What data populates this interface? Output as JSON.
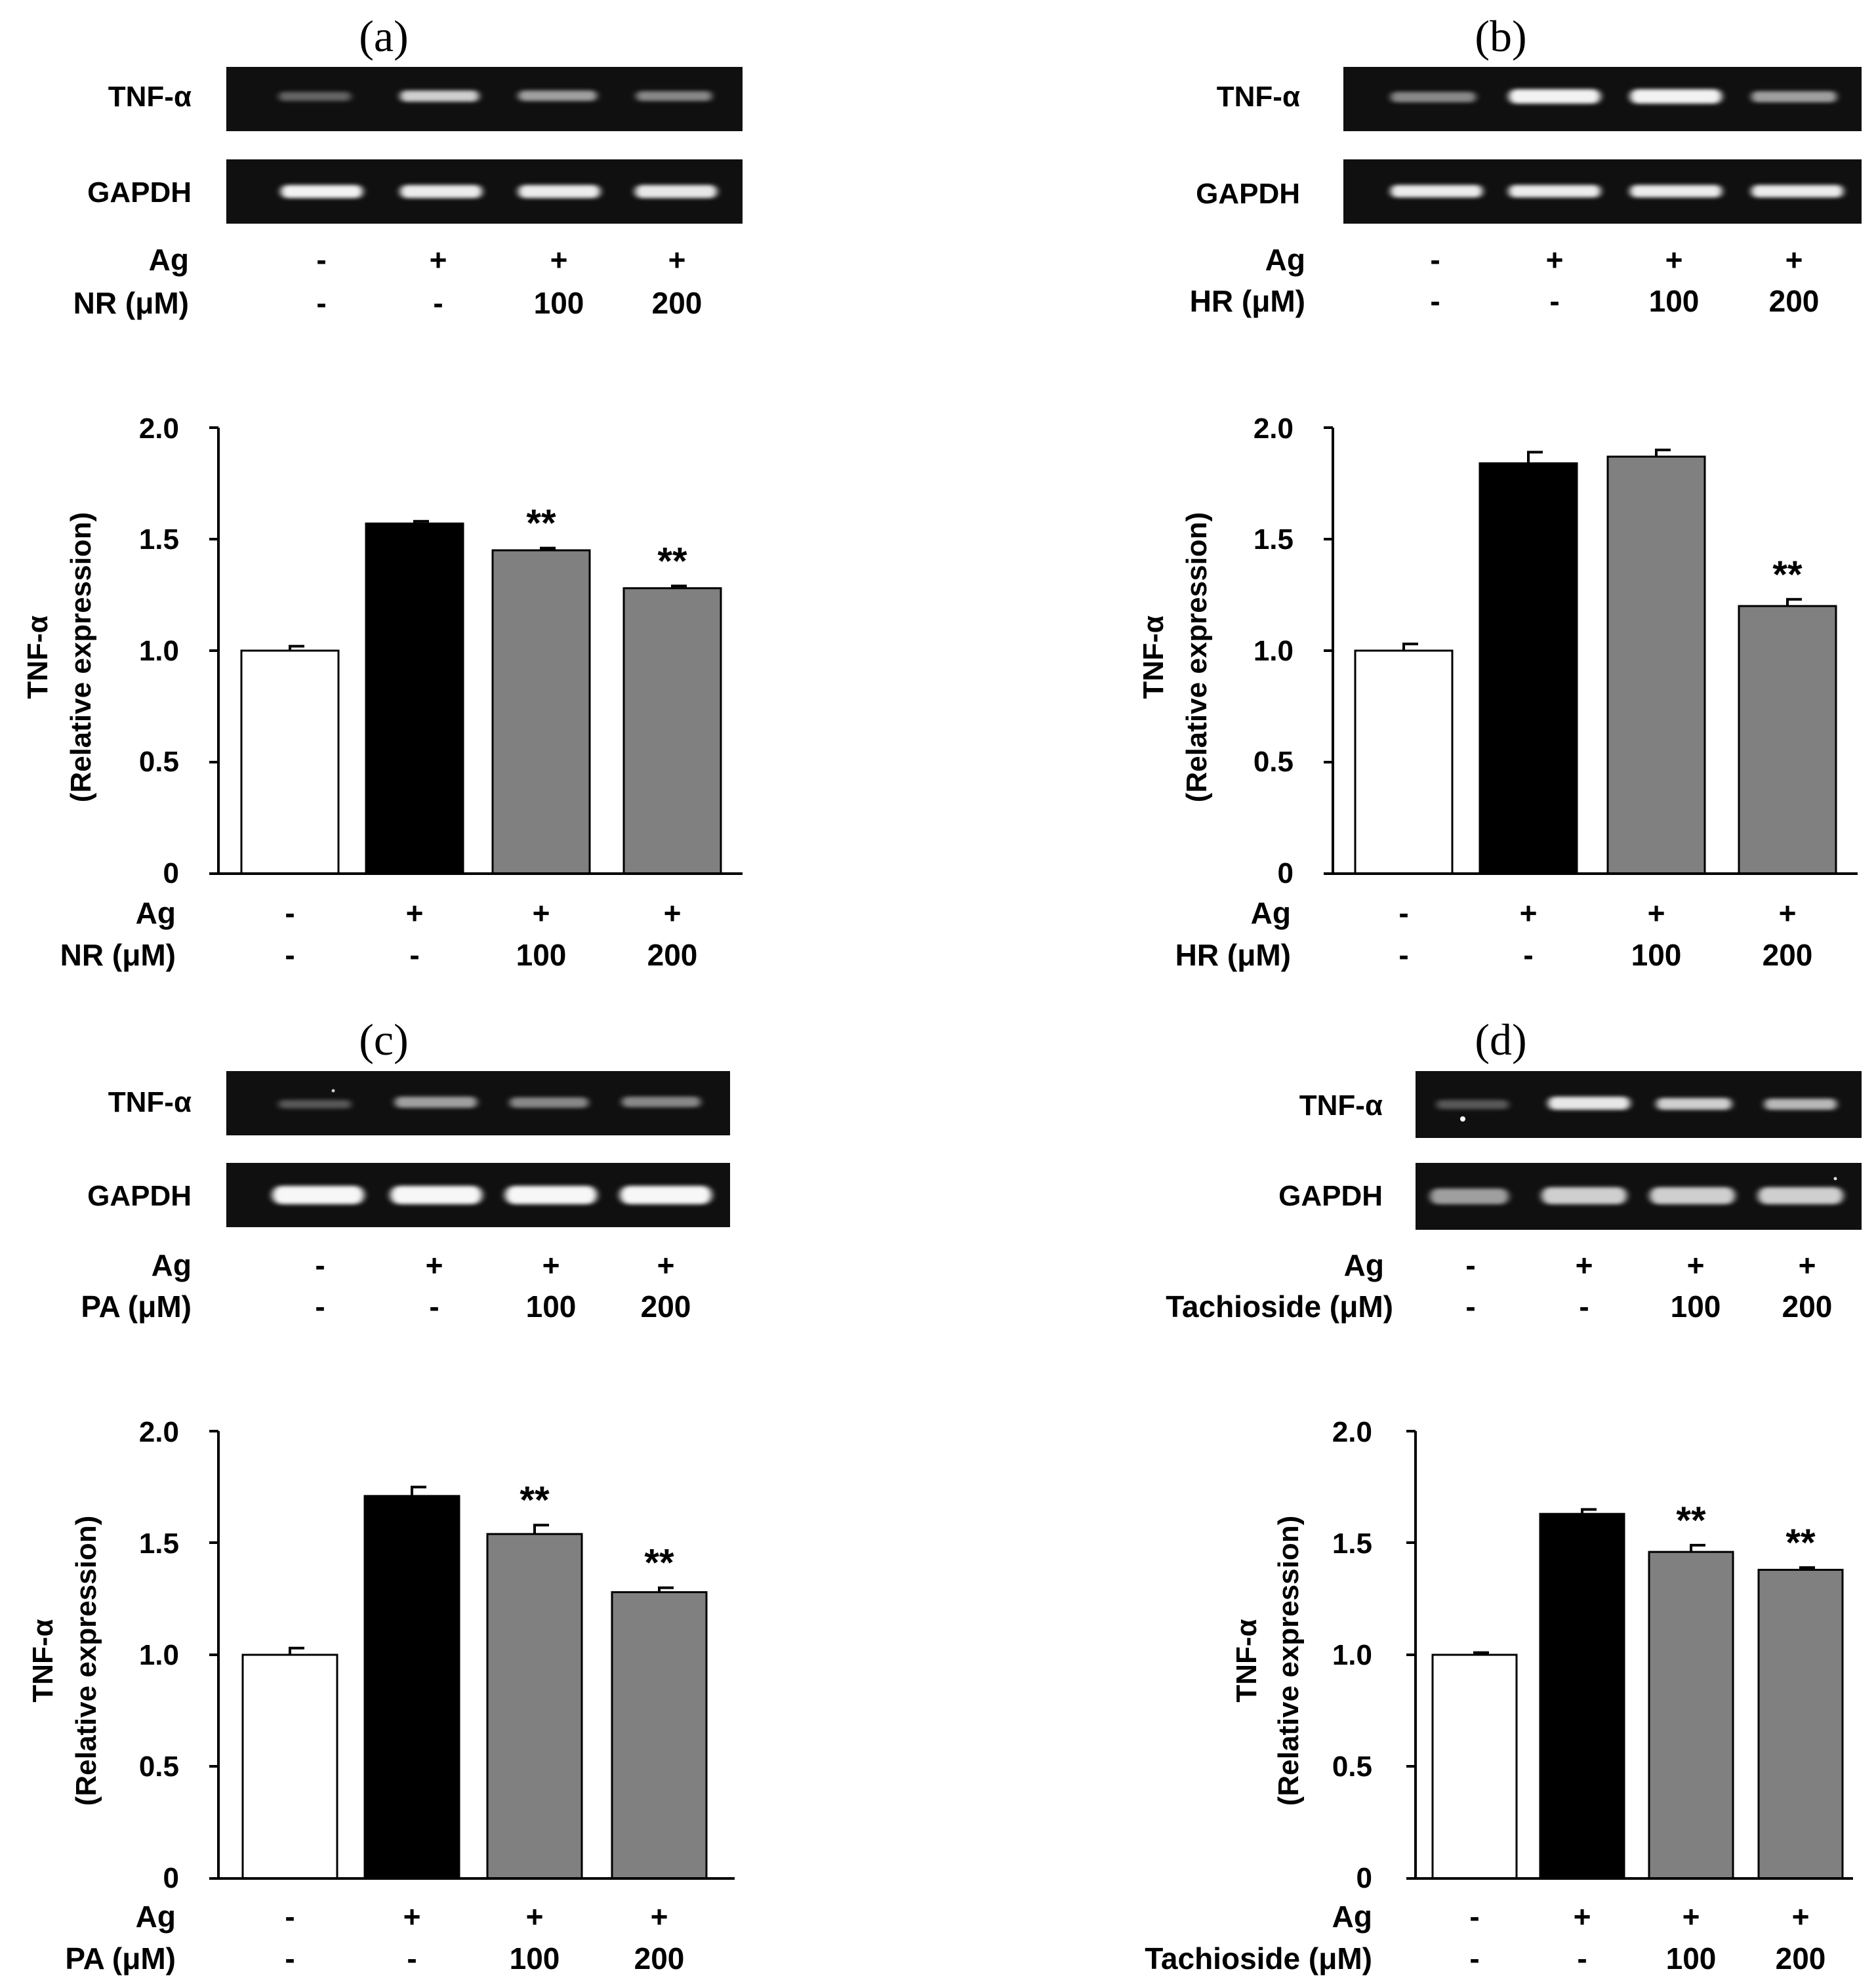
{
  "chart_data": [
    {
      "type": "bar",
      "panel": "(a)",
      "gel": {
        "rows": [
          "TNF-α",
          "GAPDH"
        ],
        "tnf_intensity": [
          0.35,
          0.8,
          0.6,
          0.5
        ],
        "gapdh_intensity": [
          0.95,
          0.92,
          0.92,
          0.9
        ]
      },
      "conditions": [
        {
          "label": "Ag",
          "values": [
            "-",
            "+",
            "+",
            "+"
          ]
        },
        {
          "label": "NR (μM)",
          "values": [
            "-",
            "-",
            "100",
            "200"
          ]
        }
      ],
      "values": [
        1.0,
        1.57,
        1.45,
        1.28
      ],
      "errors": [
        0.02,
        0.01,
        0.01,
        0.01
      ],
      "colors": [
        "#ffffff",
        "#000000",
        "#808080",
        "#808080"
      ],
      "significance": [
        "",
        "",
        "**",
        "**"
      ],
      "ylabel": "TNF-α",
      "ylabel2": "(Relative expression)",
      "ylim": [
        0,
        2.0
      ],
      "yticks": [
        "0",
        "0.5",
        "1.0",
        "1.5",
        "2.0"
      ]
    },
    {
      "type": "bar",
      "panel": "(b)",
      "gel": {
        "rows": [
          "TNF-α",
          "GAPDH"
        ],
        "tnf_intensity": [
          0.5,
          0.95,
          0.95,
          0.6
        ],
        "gapdh_intensity": [
          0.92,
          0.92,
          0.92,
          0.92
        ]
      },
      "conditions": [
        {
          "label": "Ag",
          "values": [
            "-",
            "+",
            "+",
            "+"
          ]
        },
        {
          "label": "HR (μM)",
          "values": [
            "-",
            "-",
            "100",
            "200"
          ]
        }
      ],
      "values": [
        1.0,
        1.84,
        1.87,
        1.2
      ],
      "errors": [
        0.03,
        0.05,
        0.03,
        0.03
      ],
      "colors": [
        "#ffffff",
        "#000000",
        "#808080",
        "#808080"
      ],
      "significance": [
        "",
        "",
        "",
        "**"
      ],
      "ylabel": "TNF-α",
      "ylabel2": "(Relative expression)",
      "ylim": [
        0,
        2.0
      ],
      "yticks": [
        "0",
        "0.5",
        "1.0",
        "1.5",
        "2.0"
      ]
    },
    {
      "type": "bar",
      "panel": "(c)",
      "gel": {
        "rows": [
          "TNF-α",
          "GAPDH"
        ],
        "tnf_intensity": [
          0.3,
          0.6,
          0.5,
          0.5
        ],
        "gapdh_intensity": [
          0.97,
          0.97,
          0.97,
          0.97
        ]
      },
      "conditions": [
        {
          "label": "Ag",
          "values": [
            "-",
            "+",
            "+",
            "+"
          ]
        },
        {
          "label": "PA (μM)",
          "values": [
            "-",
            "-",
            "100",
            "200"
          ]
        }
      ],
      "values": [
        1.0,
        1.71,
        1.54,
        1.28
      ],
      "errors": [
        0.03,
        0.04,
        0.04,
        0.02
      ],
      "colors": [
        "#ffffff",
        "#000000",
        "#808080",
        "#808080"
      ],
      "significance": [
        "",
        "",
        "**",
        "**"
      ],
      "ylabel": "TNF-α",
      "ylabel2": "(Relative expression)",
      "ylim": [
        0,
        2.0
      ],
      "yticks": [
        "0",
        "0.5",
        "1.0",
        "1.5",
        "2.0"
      ]
    },
    {
      "type": "bar",
      "panel": "(d)",
      "gel": {
        "rows": [
          "TNF-α",
          "GAPDH"
        ],
        "tnf_intensity": [
          0.3,
          0.9,
          0.8,
          0.7
        ],
        "gapdh_intensity": [
          0.6,
          0.8,
          0.8,
          0.8
        ]
      },
      "conditions": [
        {
          "label": "Ag",
          "values": [
            "-",
            "+",
            "+",
            "+"
          ]
        },
        {
          "label": "Tachioside (μM)",
          "values": [
            "-",
            "-",
            "100",
            "200"
          ]
        }
      ],
      "values": [
        1.0,
        1.63,
        1.46,
        1.38
      ],
      "errors": [
        0.01,
        0.02,
        0.03,
        0.01
      ],
      "colors": [
        "#ffffff",
        "#000000",
        "#808080",
        "#808080"
      ],
      "significance": [
        "",
        "",
        "**",
        "**"
      ],
      "ylabel": "TNF-α",
      "ylabel2": "(Relative expression)",
      "ylim": [
        0,
        2.0
      ],
      "yticks": [
        "0",
        "0.5",
        "1.0",
        "1.5",
        "2.0"
      ]
    }
  ]
}
